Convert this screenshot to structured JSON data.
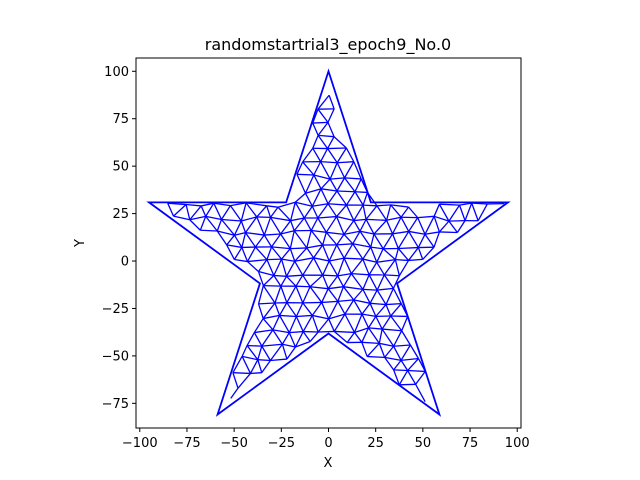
{
  "chart_data": {
    "type": "mesh",
    "title": "randomstartrial3_epoch9_No.0",
    "xlabel": "X",
    "ylabel": "Y",
    "xlim": [
      -102,
      102
    ],
    "ylim": [
      -88,
      107
    ],
    "xticks": [
      -100,
      -75,
      -50,
      -25,
      0,
      25,
      50,
      75,
      100
    ],
    "yticks": [
      -75,
      -50,
      -25,
      0,
      25,
      50,
      75,
      100
    ],
    "grid": false,
    "mesh_color": "#0000ff",
    "outline": [
      [
        0,
        100
      ],
      [
        22.45,
        30.9
      ],
      [
        95.1,
        30.9
      ],
      [
        36.33,
        -11.8
      ],
      [
        58.78,
        -80.9
      ],
      [
        0,
        -38.2
      ],
      [
        -58.78,
        -80.9
      ],
      [
        -36.33,
        -11.8
      ],
      [
        -95.1,
        30.9
      ],
      [
        -22.45,
        30.9
      ]
    ],
    "mesh_spacing": 8.5
  }
}
